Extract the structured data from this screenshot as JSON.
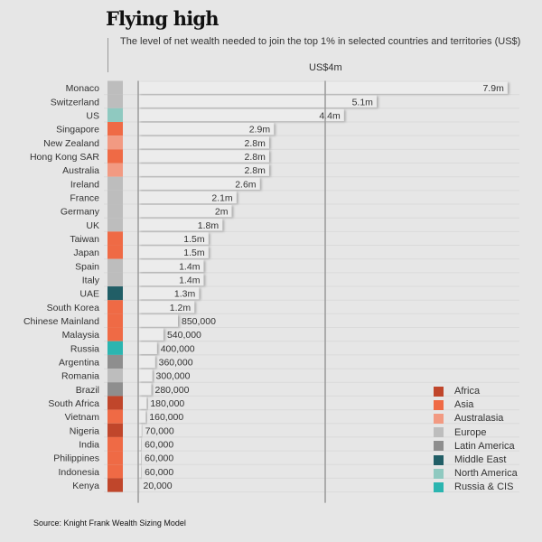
{
  "title": "Flying high",
  "subtitle": "The level of net wealth needed to join the top 1% in selected countries and territories (US$)",
  "source": "Source: Knight Frank Wealth Sizing Model",
  "chart_data": {
    "type": "bar",
    "orientation": "horizontal",
    "reference_line": {
      "value": 4,
      "label": "US$4m"
    },
    "unit": "US$ millions",
    "xlim": [
      0,
      7.9
    ],
    "categories": [
      "Monaco",
      "Switzerland",
      "US",
      "Singapore",
      "New Zealand",
      "Hong Kong SAR",
      "Australia",
      "Ireland",
      "France",
      "Germany",
      "UK",
      "Taiwan",
      "Japan",
      "Spain",
      "Italy",
      "UAE",
      "South Korea",
      "Chinese Mainland",
      "Malaysia",
      "Russia",
      "Argentina",
      "Romania",
      "Brazil",
      "South Africa",
      "Vietnam",
      "Nigeria",
      "India",
      "Philippines",
      "Indonesia",
      "Kenya"
    ],
    "values": [
      7.9,
      5.1,
      4.4,
      2.9,
      2.8,
      2.8,
      2.8,
      2.6,
      2.1,
      2.0,
      1.8,
      1.5,
      1.5,
      1.4,
      1.4,
      1.3,
      1.2,
      0.85,
      0.54,
      0.4,
      0.36,
      0.3,
      0.28,
      0.18,
      0.16,
      0.07,
      0.06,
      0.06,
      0.06,
      0.02
    ],
    "data_labels": [
      "7.9m",
      "5.1m",
      "4.4m",
      "2.9m",
      "2.8m",
      "2.8m",
      "2.8m",
      "2.6m",
      "2.1m",
      "2m",
      "1.8m",
      "1.5m",
      "1.5m",
      "1.4m",
      "1.4m",
      "1.3m",
      "1.2m",
      "850,000",
      "540,000",
      "400,000",
      "360,000",
      "300,000",
      "280,000",
      "180,000",
      "160,000",
      "70,000",
      "60,000",
      "60,000",
      "60,000",
      "20,000"
    ],
    "regions": [
      "Europe",
      "Europe",
      "North America",
      "Asia",
      "Australasia",
      "Asia",
      "Australasia",
      "Europe",
      "Europe",
      "Europe",
      "Europe",
      "Asia",
      "Asia",
      "Europe",
      "Europe",
      "Middle East",
      "Asia",
      "Asia",
      "Asia",
      "Russia & CIS",
      "Latin America",
      "Europe",
      "Latin America",
      "Africa",
      "Asia",
      "Africa",
      "Asia",
      "Asia",
      "Asia",
      "Africa"
    ],
    "legend": [
      {
        "name": "Africa",
        "color": "#c0462b"
      },
      {
        "name": "Asia",
        "color": "#ef6a45"
      },
      {
        "name": "Australasia",
        "color": "#f29a82"
      },
      {
        "name": "Europe",
        "color": "#bdbdbd"
      },
      {
        "name": "Latin America",
        "color": "#8e8e8e"
      },
      {
        "name": "Middle East",
        "color": "#215e66"
      },
      {
        "name": "North America",
        "color": "#8fc9c0"
      },
      {
        "name": "Russia & CIS",
        "color": "#2bb5b0"
      }
    ],
    "legend_position": "bottom-right"
  }
}
